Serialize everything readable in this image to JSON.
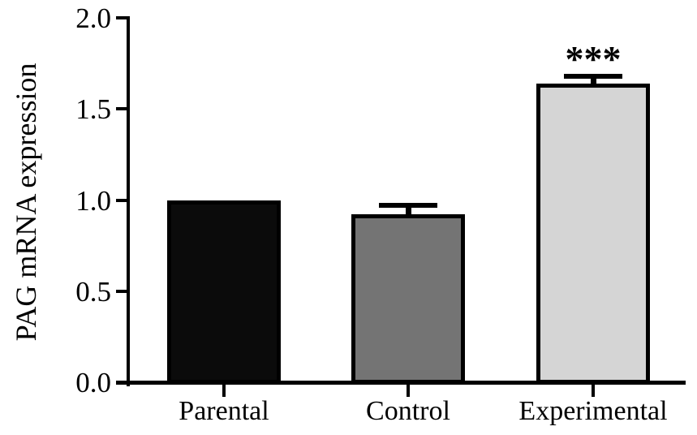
{
  "chart_data": {
    "type": "bar",
    "title": "",
    "xlabel": "",
    "ylabel": "PAG mRNA expression",
    "categories": [
      "Parental",
      "Control",
      "Experimental"
    ],
    "values": [
      1.0,
      0.92,
      1.64
    ],
    "errors_up": [
      0,
      0.05,
      0.04
    ],
    "annotations": [
      "",
      "",
      "***"
    ],
    "bar_fill_colors": [
      "#0b0b0b",
      "#747474",
      "#d5d5d5"
    ],
    "bar_border_color": "#000000",
    "ylim": [
      0,
      2
    ],
    "yticks": [
      0,
      0.5,
      1,
      1.5,
      2
    ],
    "ytick_labels": [
      "0.0",
      "0.5",
      "1.0",
      "1.5",
      "2.0"
    ],
    "axis_color": "#000000",
    "background_color": "#ffffff",
    "grid": false,
    "legend": null
  }
}
